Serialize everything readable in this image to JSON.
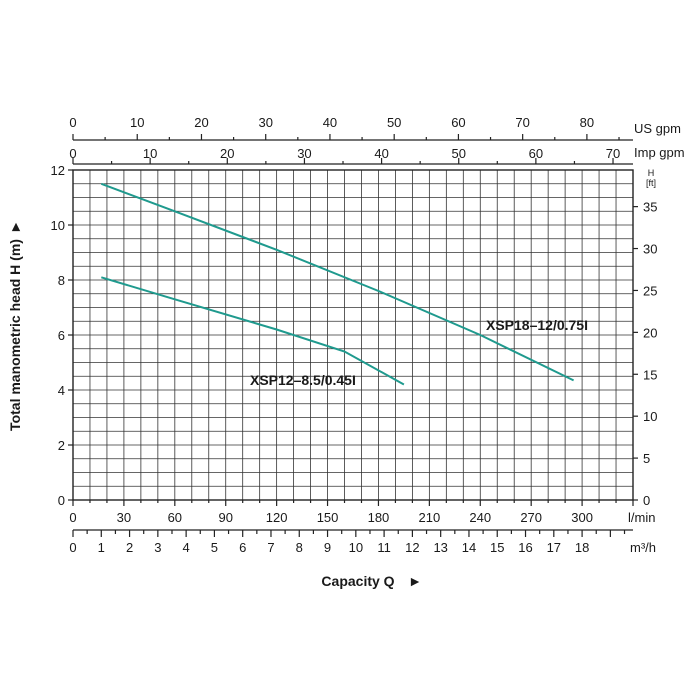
{
  "chart_data": {
    "type": "line",
    "title": "",
    "ylabel": "Total manometric head H (m)",
    "xlabel": "Capacity Q",
    "ylim": [
      0,
      12
    ],
    "xlim_lmin": [
      0,
      330
    ],
    "y_ticks": [
      "0",
      "2",
      "4",
      "6",
      "8",
      "10",
      "12"
    ],
    "y_right_unit_line1": "H",
    "y_right_unit_line2": "[ft]",
    "y_right_ticks": [
      "0",
      "5",
      "10",
      "15",
      "20",
      "25",
      "30",
      "35"
    ],
    "axes": {
      "us_gpm": {
        "unit": "US gpm",
        "ticks": [
          "0",
          "10",
          "20",
          "30",
          "40",
          "50",
          "60",
          "70",
          "80"
        ]
      },
      "imp_gpm": {
        "unit": "Imp gpm",
        "ticks": [
          "0",
          "10",
          "20",
          "30",
          "40",
          "50",
          "60",
          "70"
        ]
      },
      "lmin": {
        "unit": "l/min",
        "ticks": [
          "0",
          "30",
          "60",
          "90",
          "120",
          "150",
          "180",
          "210",
          "240",
          "270",
          "300"
        ]
      },
      "m3h": {
        "unit": "m³/h",
        "ticks": [
          "0",
          "1",
          "2",
          "3",
          "4",
          "5",
          "6",
          "7",
          "8",
          "9",
          "10",
          "11",
          "12",
          "13",
          "14",
          "15",
          "16",
          "17",
          "18"
        ]
      }
    },
    "series": [
      {
        "name": "XSP18–12/0.75I",
        "x_lmin": [
          16.7,
          60,
          120,
          180,
          240,
          295
        ],
        "y": [
          11.5,
          10.5,
          9.1,
          7.6,
          6.0,
          4.35
        ]
      },
      {
        "name": "XSP12–8.5/0.45I",
        "x_lmin": [
          16.7,
          60,
          120,
          160,
          195
        ],
        "y": [
          8.1,
          7.3,
          6.2,
          5.4,
          4.2
        ]
      }
    ],
    "colors": {
      "curve": "#1f9a8e",
      "grid": "#333333"
    },
    "grid": true
  }
}
